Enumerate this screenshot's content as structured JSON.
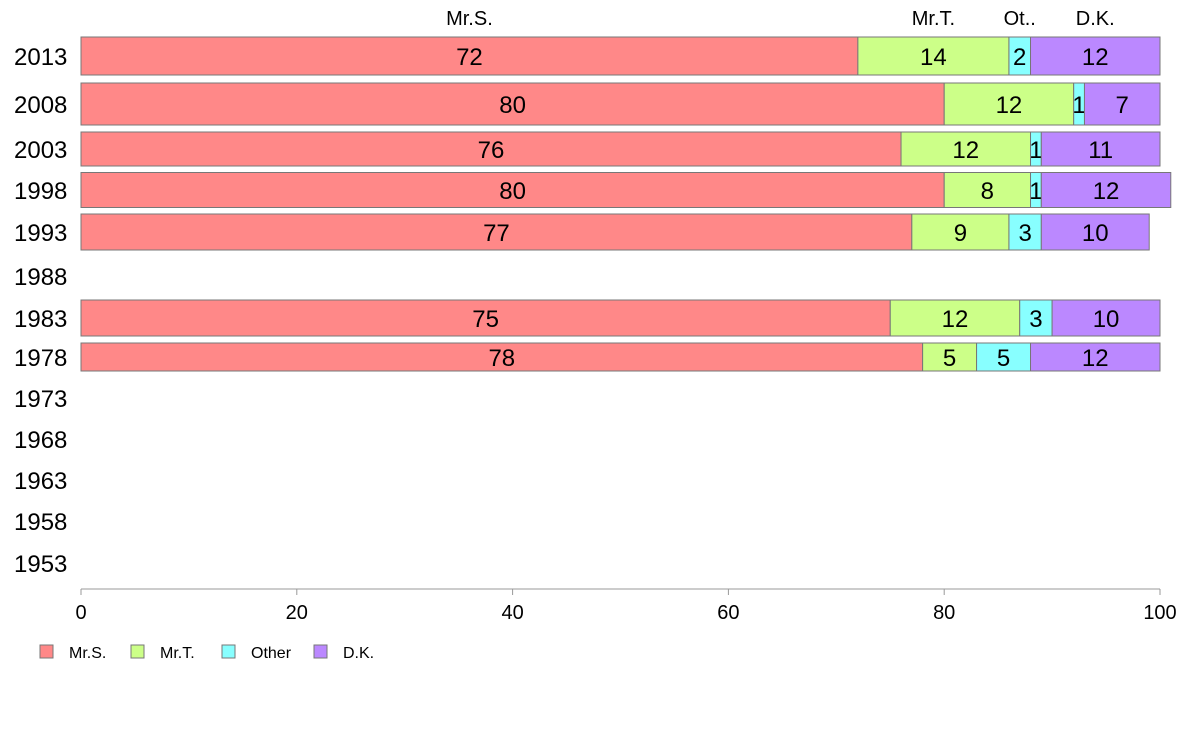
{
  "chart_data": {
    "type": "bar",
    "orientation": "horizontal",
    "stacked": true,
    "categories": [
      "2013",
      "2008",
      "2003",
      "1998",
      "1993",
      "1988",
      "1983",
      "1978",
      "1973",
      "1968",
      "1963",
      "1958",
      "1953"
    ],
    "series": [
      {
        "name": "Mr.S.",
        "top_label": "Mr.S.",
        "color": "#FF8888",
        "values": [
          72,
          80,
          76,
          80,
          77,
          null,
          75,
          78,
          null,
          null,
          null,
          null,
          null
        ]
      },
      {
        "name": "Mr.T.",
        "top_label": "Mr.T.",
        "color": "#CCFF88",
        "values": [
          14,
          12,
          12,
          8,
          9,
          null,
          12,
          5,
          null,
          null,
          null,
          null,
          null
        ]
      },
      {
        "name": "Other",
        "top_label": "Ot..",
        "color": "#88FFFF",
        "values": [
          2,
          1,
          1,
          1,
          3,
          null,
          3,
          5,
          null,
          null,
          null,
          null,
          null
        ]
      },
      {
        "name": "D.K.",
        "top_label": "D.K.",
        "color": "#BB88FF",
        "values": [
          12,
          7,
          11,
          12,
          10,
          null,
          10,
          12,
          null,
          null,
          null,
          null,
          null
        ]
      }
    ],
    "xlim": [
      0,
      100
    ],
    "x_ticks": [
      "0",
      "20",
      "40",
      "60",
      "80",
      "100"
    ],
    "title": "",
    "xlabel": "",
    "ylabel": "",
    "grid": false,
    "legend_position": "bottom-left"
  }
}
